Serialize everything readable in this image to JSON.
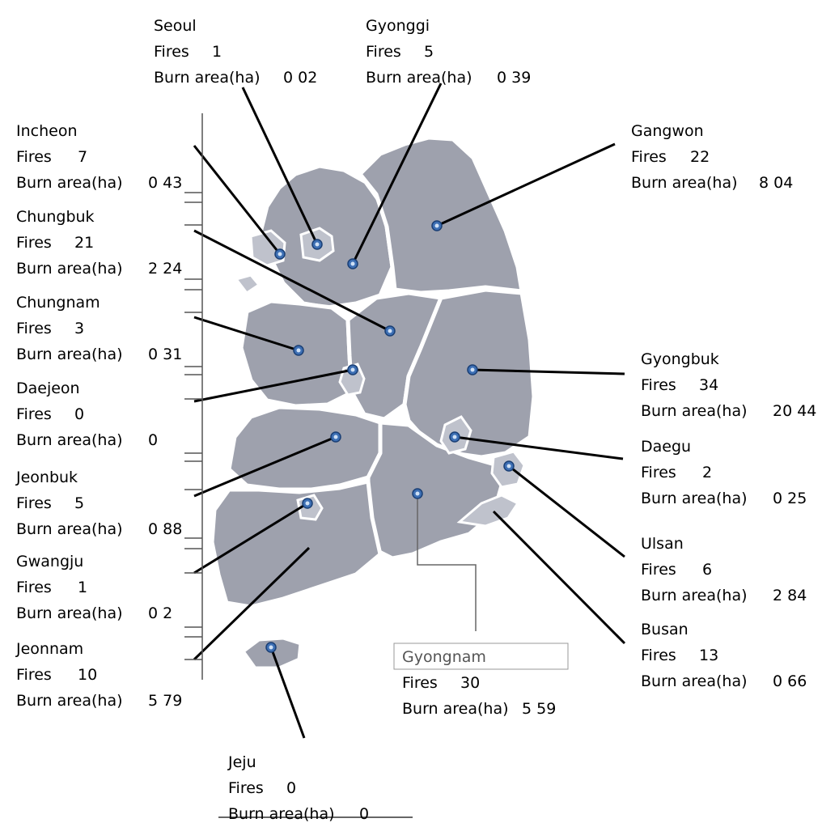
{
  "fires_label": "Fires",
  "burn_label": "Burn area(ha)",
  "regions": {
    "seoul": {
      "name": "Seoul",
      "fires": "1",
      "burn": "0 02"
    },
    "gyonggi": {
      "name": "Gyonggi",
      "fires": "5",
      "burn": "0 39"
    },
    "incheon": {
      "name": "Incheon",
      "fires": "7",
      "burn": "0 43"
    },
    "gangwon": {
      "name": "Gangwon",
      "fires": "22",
      "burn": "8 04"
    },
    "chungbuk": {
      "name": "Chungbuk",
      "fires": "21",
      "burn": "2 24"
    },
    "chungnam": {
      "name": "Chungnam",
      "fires": "3",
      "burn": "0 31"
    },
    "gyongbuk": {
      "name": "Gyongbuk",
      "fires": "34",
      "burn": "20 44"
    },
    "daejeon": {
      "name": "Daejeon",
      "fires": "0",
      "burn": "0"
    },
    "daegu": {
      "name": "Daegu",
      "fires": "2",
      "burn": "0 25"
    },
    "jeonbuk": {
      "name": "Jeonbuk",
      "fires": "5",
      "burn": "0 88"
    },
    "ulsan": {
      "name": "Ulsan",
      "fires": "6",
      "burn": "2 84"
    },
    "gwangju": {
      "name": "Gwangju",
      "fires": "1",
      "burn": "0 2"
    },
    "busan": {
      "name": "Busan",
      "fires": "13",
      "burn": "0 66"
    },
    "jeonnam": {
      "name": "Jeonnam",
      "fires": "10",
      "burn": "5 79"
    },
    "gyongnam": {
      "name": "Gyongnam",
      "fires": "30",
      "burn": "5 59"
    },
    "jeju": {
      "name": "Jeju",
      "fires": "0",
      "burn": "0"
    }
  },
  "colors": {
    "land": "#9ea1ad",
    "metro": "#bfc2cc",
    "marker": "#3d6fb4"
  }
}
